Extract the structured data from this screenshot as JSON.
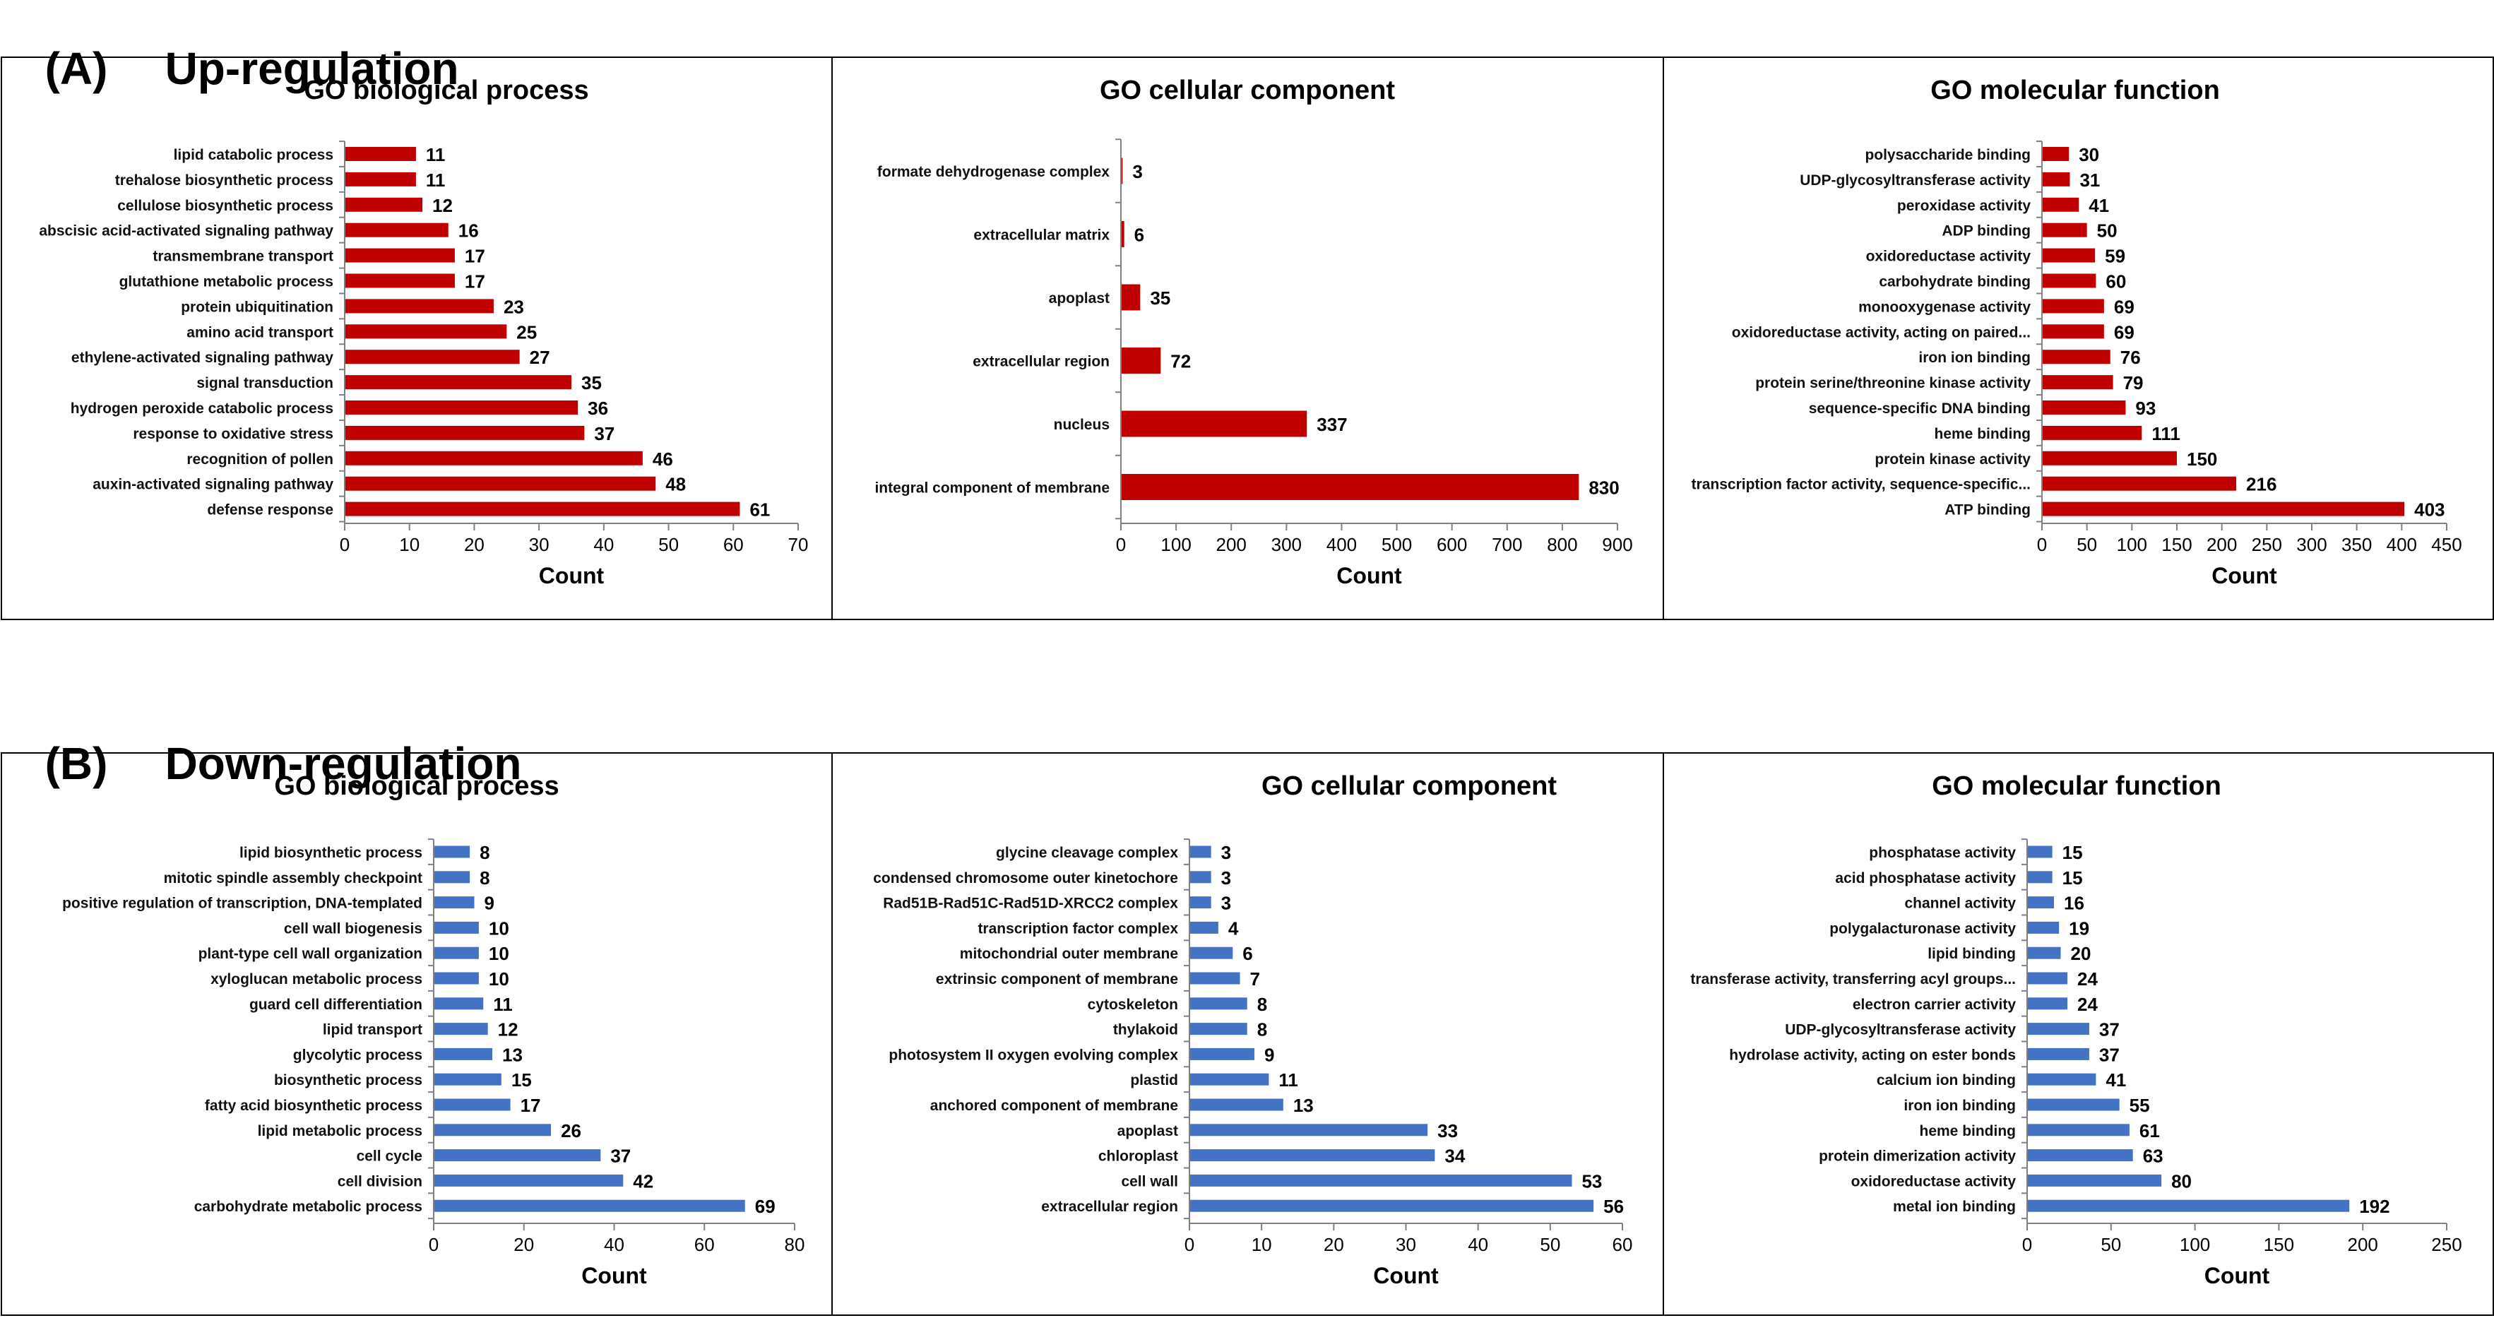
{
  "sections": [
    {
      "label": "(A)",
      "title": "Up-regulation",
      "color": "#c00000",
      "charts": [
        {
          "type": "bar",
          "orientation": "horizontal",
          "title": "GO biological process",
          "xlabel": "Count",
          "xlim": [
            0,
            70
          ],
          "xticks": [
            0,
            10,
            20,
            30,
            40,
            50,
            60,
            70
          ],
          "categories": [
            "lipid catabolic process",
            "trehalose biosynthetic process",
            "cellulose biosynthetic process",
            "abscisic acid-activated signaling pathway",
            "transmembrane transport",
            "glutathione metabolic process",
            "protein ubiquitination",
            "amino acid transport",
            "ethylene-activated signaling pathway",
            "signal transduction",
            "hydrogen peroxide catabolic process",
            "response to oxidative stress",
            "recognition of pollen",
            "auxin-activated signaling pathway",
            "defense response"
          ],
          "values": [
            11,
            11,
            12,
            16,
            17,
            17,
            23,
            25,
            27,
            35,
            36,
            37,
            46,
            48,
            61
          ]
        },
        {
          "type": "bar",
          "orientation": "horizontal",
          "title": "GO cellular component",
          "xlabel": "Count",
          "xlim": [
            0,
            900
          ],
          "xticks": [
            0,
            100,
            200,
            300,
            400,
            500,
            600,
            700,
            800,
            900
          ],
          "categories": [
            "formate dehydrogenase complex",
            "extracellular matrix",
            "apoplast",
            "extracellular region",
            "nucleus",
            "integral component of membrane"
          ],
          "values": [
            3,
            6,
            35,
            72,
            337,
            830
          ]
        },
        {
          "type": "bar",
          "orientation": "horizontal",
          "title": "GO molecular function",
          "xlabel": "Count",
          "xlim": [
            0,
            450
          ],
          "xticks": [
            0,
            50,
            100,
            150,
            200,
            250,
            300,
            350,
            400,
            450
          ],
          "categories": [
            "polysaccharide binding",
            "UDP-glycosyltransferase activity",
            "peroxidase activity",
            "ADP binding",
            "oxidoreductase activity",
            "carbohydrate binding",
            "monooxygenase activity",
            "oxidoreductase activity, acting on paired...",
            "iron ion binding",
            "protein serine/threonine kinase activity",
            "sequence-specific DNA binding",
            "heme binding",
            "protein kinase activity",
            "transcription factor activity, sequence-specific...",
            "ATP binding"
          ],
          "values": [
            30,
            31,
            41,
            50,
            59,
            60,
            69,
            69,
            76,
            79,
            93,
            111,
            150,
            216,
            403
          ]
        }
      ]
    },
    {
      "label": "(B)",
      "title": "Down-regulation",
      "color": "#4472c4",
      "charts": [
        {
          "type": "bar",
          "orientation": "horizontal",
          "title": "GO biological process",
          "xlabel": "Count",
          "xlim": [
            0,
            80
          ],
          "xticks": [
            0,
            20,
            40,
            60,
            80
          ],
          "categories": [
            "lipid biosynthetic process",
            "mitotic spindle assembly checkpoint",
            "positive regulation of transcription, DNA-templated",
            "cell wall biogenesis",
            "plant-type cell wall organization",
            "xyloglucan metabolic process",
            "guard cell differentiation",
            "lipid transport",
            "glycolytic process",
            "biosynthetic process",
            "fatty acid biosynthetic process",
            "lipid metabolic process",
            "cell cycle",
            "cell division",
            "carbohydrate metabolic process"
          ],
          "values": [
            8,
            8,
            9,
            10,
            10,
            10,
            11,
            12,
            13,
            15,
            17,
            26,
            37,
            42,
            69
          ]
        },
        {
          "type": "bar",
          "orientation": "horizontal",
          "title": "GO cellular component",
          "xlabel": "Count",
          "xlim": [
            0,
            60
          ],
          "xticks": [
            0,
            10,
            20,
            30,
            40,
            50,
            60
          ],
          "categories": [
            "glycine cleavage complex",
            "condensed chromosome outer kinetochore",
            "Rad51B-Rad51C-Rad51D-XRCC2 complex",
            "transcription factor complex",
            "mitochondrial outer membrane",
            "extrinsic component of membrane",
            "cytoskeleton",
            "thylakoid",
            "photosystem II oxygen evolving complex",
            "plastid",
            "anchored component of membrane",
            "apoplast",
            "chloroplast",
            "cell wall",
            "extracellular region"
          ],
          "values": [
            3,
            3,
            3,
            4,
            6,
            7,
            8,
            8,
            9,
            11,
            13,
            33,
            34,
            53,
            56
          ]
        },
        {
          "type": "bar",
          "orientation": "horizontal",
          "title": "GO molecular function",
          "xlabel": "Count",
          "xlim": [
            0,
            250
          ],
          "xticks": [
            0,
            50,
            100,
            150,
            200,
            250
          ],
          "categories": [
            "phosphatase activity",
            "acid phosphatase activity",
            "channel activity",
            "polygalacturonase activity",
            "lipid binding",
            "transferase activity, transferring acyl groups...",
            "electron carrier activity",
            "UDP-glycosyltransferase activity",
            "hydrolase activity, acting on ester bonds",
            "calcium ion binding",
            "iron ion binding",
            "heme binding",
            "protein dimerization activity",
            "oxidoreductase activity",
            "metal ion binding"
          ],
          "values": [
            15,
            15,
            16,
            19,
            20,
            24,
            24,
            37,
            37,
            41,
            55,
            61,
            63,
            80,
            192
          ]
        }
      ]
    }
  ]
}
